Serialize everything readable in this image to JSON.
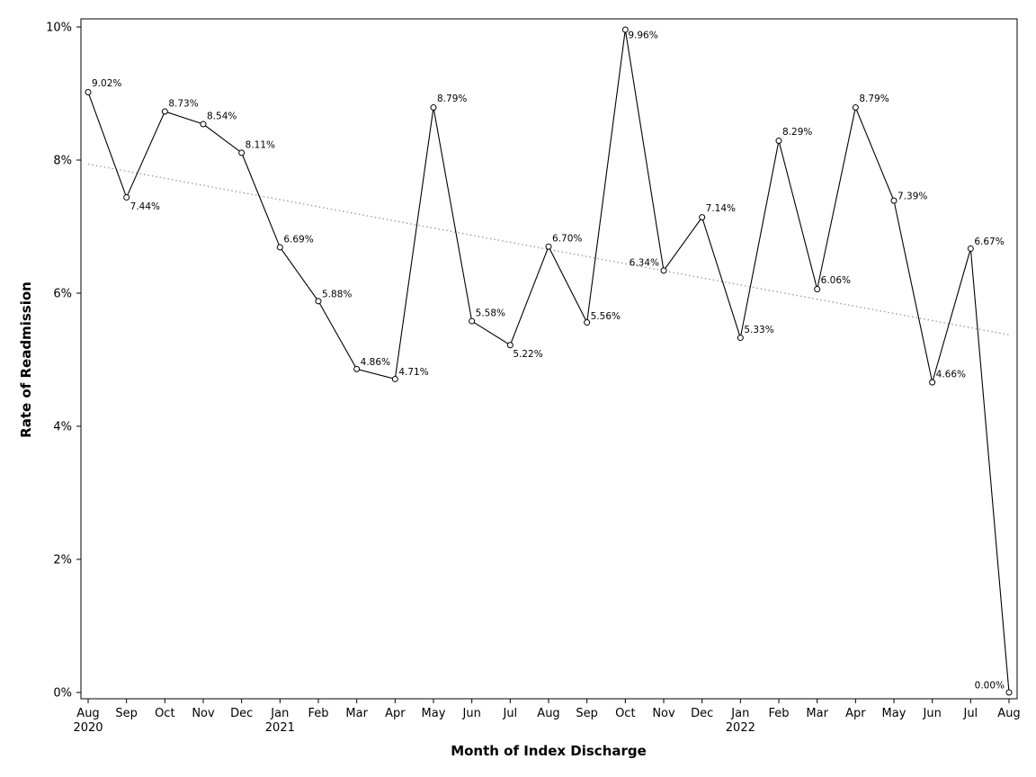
{
  "chart_data": {
    "type": "line",
    "title": "",
    "xlabel": "Month of Index Discharge",
    "ylabel": "Rate of Readmission",
    "x_month_labels": [
      "Aug",
      "Sep",
      "Oct",
      "Nov",
      "Dec",
      "Jan",
      "Feb",
      "Mar",
      "Apr",
      "May",
      "Jun",
      "Jul",
      "Aug",
      "Sep",
      "Oct",
      "Nov",
      "Dec",
      "Jan",
      "Feb",
      "Mar",
      "Apr",
      "May",
      "Jun",
      "Jul",
      "Aug"
    ],
    "x_year_labels": [
      {
        "index": 0,
        "label": "2020"
      },
      {
        "index": 5,
        "label": "2021"
      },
      {
        "index": 17,
        "label": "2022"
      }
    ],
    "values": [
      9.02,
      7.44,
      8.73,
      8.54,
      8.11,
      6.69,
      5.88,
      4.86,
      4.71,
      8.79,
      5.58,
      5.22,
      6.7,
      5.56,
      9.96,
      6.34,
      7.14,
      5.33,
      8.29,
      6.06,
      8.79,
      7.39,
      4.66,
      6.67,
      0.0
    ],
    "value_labels": [
      "9.02%",
      "7.44%",
      "8.73%",
      "8.54%",
      "8.11%",
      "6.69%",
      "5.88%",
      "4.86%",
      "4.71%",
      "8.79%",
      "5.58%",
      "5.22%",
      "6.70%",
      "5.56%",
      "9.96%",
      "6.34%",
      "7.14%",
      "5.33%",
      "8.29%",
      "6.06%",
      "8.79%",
      "7.39%",
      "4.66%",
      "6.67%",
      "0.00%"
    ],
    "ylim": [
      0,
      10
    ],
    "y_ticks": [
      0,
      2,
      4,
      6,
      8,
      10
    ],
    "y_tick_labels": [
      "0%",
      "2%",
      "4%",
      "6%",
      "8%",
      "10%"
    ],
    "trend_line": {
      "start_value": 7.94,
      "end_value": 5.37,
      "style": "dotted"
    },
    "grid": false,
    "legend": "none",
    "colors": {
      "line": "#000000",
      "trend": "#999999",
      "marker": "#000000"
    }
  }
}
